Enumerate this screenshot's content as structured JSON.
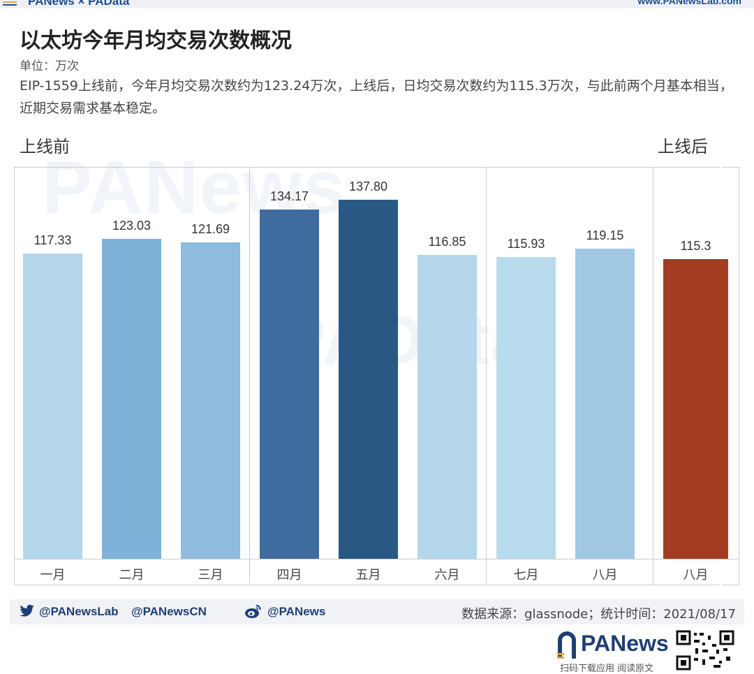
{
  "header": {
    "brand": "PANews × PAData",
    "url": "www.PANewsLab.com"
  },
  "title": "以太坊今年月均交易次数概况",
  "unit": "单位：万次",
  "description": "EIP-1559上线前，今年月均交易次数约为123.24万次，上线后，日均交易次数约为115.3万次，与此前两个月基本相当，近期交易需求基本稳定。",
  "sections": {
    "before": "上线前",
    "after": "上线后"
  },
  "watermarks": [
    "PANews",
    "PAData"
  ],
  "chart_data": {
    "type": "bar",
    "title": "以太坊今年月均交易次数概况",
    "unit": "万次",
    "ylim": [
      0,
      140
    ],
    "grid": false,
    "groups": [
      {
        "name": "上线前",
        "categories": [
          "一月",
          "二月",
          "三月",
          "四月",
          "五月",
          "六月",
          "七月",
          "八月"
        ],
        "values": [
          117.33,
          123.03,
          121.69,
          134.17,
          137.8,
          116.85,
          115.93,
          119.15
        ],
        "labels": [
          "117.33",
          "123.03",
          "121.69",
          "134.17",
          "137.80",
          "116.85",
          "115.93",
          "119.15"
        ],
        "colors": [
          "#b4d7ec",
          "#7eb2d8",
          "#8fbcdc",
          "#3e6c9e",
          "#2a5884",
          "#b4d7ec",
          "#b8dbee",
          "#a1c8e2"
        ]
      },
      {
        "name": "上线后",
        "categories": [
          "八月"
        ],
        "values": [
          115.3
        ],
        "labels": [
          "115.3"
        ],
        "colors": [
          "#a33c20"
        ]
      }
    ]
  },
  "footer": {
    "twitter_handles": [
      "@PANewsLab",
      "@PANewsCN"
    ],
    "weibo_handle": "@PANews",
    "source": "数据来源：glassnode；统计时间：2021/08/17",
    "logo": "PANews",
    "logo_sub": "扫码下载应用  阅读原文",
    "icons": [
      "twitter-icon",
      "weibo-icon",
      "panews-logo-icon",
      "qr-code"
    ]
  }
}
